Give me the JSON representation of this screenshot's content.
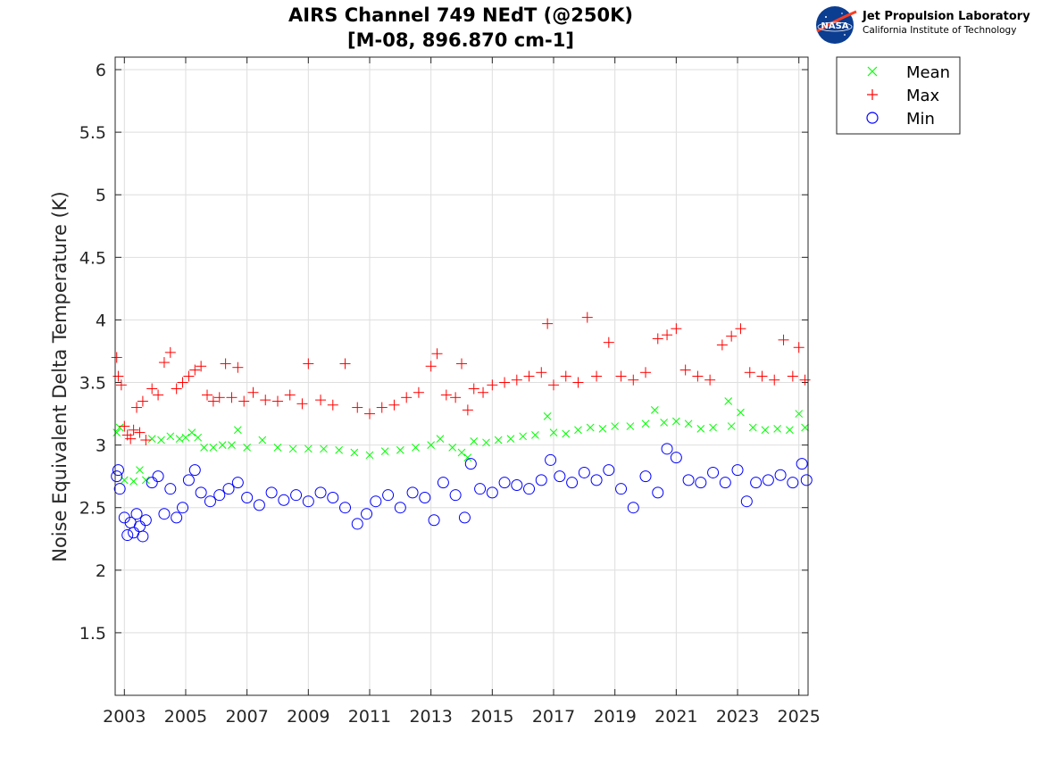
{
  "logo": {
    "org": "Jet Propulsion Laboratory",
    "sub": "California Institute of Technology",
    "badge": "NASA"
  },
  "chart_data": {
    "type": "scatter",
    "title_line1": "AIRS Channel 749 NEdT (@250K)",
    "title_line2": "[M-08, 896.870 cm-1]",
    "xlabel": "",
    "ylabel": "Noise Equivalent Delta Temperature (K)",
    "xlim": [
      2002.7,
      2025.3
    ],
    "ylim": [
      1.0,
      6.1
    ],
    "xticks": [
      2003,
      2005,
      2007,
      2009,
      2011,
      2013,
      2015,
      2017,
      2019,
      2021,
      2023,
      2025
    ],
    "yticks": [
      1.5,
      2,
      2.5,
      3,
      3.5,
      4,
      4.5,
      5,
      5.5,
      6
    ],
    "ytick_labels": [
      "1.5",
      "2",
      "2.5",
      "3",
      "3.5",
      "4",
      "4.5",
      "5",
      "5.5",
      "6"
    ],
    "grid": true,
    "legend_position": "outside-top-right",
    "series": [
      {
        "name": "Mean",
        "marker": "x",
        "color": "#00ff00",
        "points": [
          [
            2002.75,
            3.1
          ],
          [
            2002.85,
            3.14
          ],
          [
            2003.0,
            2.72
          ],
          [
            2003.3,
            2.71
          ],
          [
            2003.5,
            2.8
          ],
          [
            2003.7,
            2.72
          ],
          [
            2003.9,
            3.05
          ],
          [
            2004.2,
            3.04
          ],
          [
            2004.5,
            3.07
          ],
          [
            2004.8,
            3.05
          ],
          [
            2005.0,
            3.06
          ],
          [
            2005.2,
            3.1
          ],
          [
            2005.4,
            3.06
          ],
          [
            2005.6,
            2.98
          ],
          [
            2005.9,
            2.98
          ],
          [
            2006.2,
            3.0
          ],
          [
            2006.5,
            3.0
          ],
          [
            2006.7,
            3.12
          ],
          [
            2007.0,
            2.98
          ],
          [
            2007.5,
            3.04
          ],
          [
            2008.0,
            2.98
          ],
          [
            2008.5,
            2.97
          ],
          [
            2009.0,
            2.97
          ],
          [
            2009.5,
            2.97
          ],
          [
            2010.0,
            2.96
          ],
          [
            2010.5,
            2.94
          ],
          [
            2011.0,
            2.92
          ],
          [
            2011.5,
            2.95
          ],
          [
            2012.0,
            2.96
          ],
          [
            2012.5,
            2.98
          ],
          [
            2013.0,
            3.0
          ],
          [
            2013.3,
            3.05
          ],
          [
            2013.7,
            2.98
          ],
          [
            2014.0,
            2.94
          ],
          [
            2014.2,
            2.9
          ],
          [
            2014.4,
            3.03
          ],
          [
            2014.8,
            3.02
          ],
          [
            2015.2,
            3.04
          ],
          [
            2015.6,
            3.05
          ],
          [
            2016.0,
            3.07
          ],
          [
            2016.4,
            3.08
          ],
          [
            2016.8,
            3.23
          ],
          [
            2017.0,
            3.1
          ],
          [
            2017.4,
            3.09
          ],
          [
            2017.8,
            3.12
          ],
          [
            2018.2,
            3.14
          ],
          [
            2018.6,
            3.13
          ],
          [
            2019.0,
            3.15
          ],
          [
            2019.5,
            3.15
          ],
          [
            2020.0,
            3.17
          ],
          [
            2020.3,
            3.28
          ],
          [
            2020.6,
            3.18
          ],
          [
            2021.0,
            3.19
          ],
          [
            2021.4,
            3.17
          ],
          [
            2021.8,
            3.13
          ],
          [
            2022.2,
            3.14
          ],
          [
            2022.7,
            3.35
          ],
          [
            2022.8,
            3.15
          ],
          [
            2023.1,
            3.26
          ],
          [
            2023.5,
            3.14
          ],
          [
            2023.9,
            3.12
          ],
          [
            2024.3,
            3.13
          ],
          [
            2024.7,
            3.12
          ],
          [
            2025.0,
            3.25
          ],
          [
            2025.2,
            3.14
          ]
        ]
      },
      {
        "name": "Max",
        "marker": "+",
        "color": "#ff0000",
        "points": [
          [
            2002.75,
            3.7
          ],
          [
            2002.8,
            3.55
          ],
          [
            2002.9,
            3.48
          ],
          [
            2003.0,
            3.15
          ],
          [
            2003.1,
            3.08
          ],
          [
            2003.2,
            3.05
          ],
          [
            2003.3,
            3.12
          ],
          [
            2003.4,
            3.3
          ],
          [
            2003.5,
            3.1
          ],
          [
            2003.6,
            3.35
          ],
          [
            2003.7,
            3.04
          ],
          [
            2003.9,
            3.45
          ],
          [
            2004.1,
            3.4
          ],
          [
            2004.3,
            3.66
          ],
          [
            2004.5,
            3.74
          ],
          [
            2004.7,
            3.45
          ],
          [
            2004.9,
            3.5
          ],
          [
            2005.1,
            3.55
          ],
          [
            2005.3,
            3.6
          ],
          [
            2005.5,
            3.63
          ],
          [
            2005.7,
            3.4
          ],
          [
            2005.9,
            3.35
          ],
          [
            2006.1,
            3.38
          ],
          [
            2006.3,
            3.65
          ],
          [
            2006.5,
            3.38
          ],
          [
            2006.7,
            3.62
          ],
          [
            2006.9,
            3.35
          ],
          [
            2007.2,
            3.42
          ],
          [
            2007.6,
            3.36
          ],
          [
            2008.0,
            3.35
          ],
          [
            2008.4,
            3.4
          ],
          [
            2008.8,
            3.33
          ],
          [
            2009.0,
            3.65
          ],
          [
            2009.4,
            3.36
          ],
          [
            2009.8,
            3.32
          ],
          [
            2010.2,
            3.65
          ],
          [
            2010.6,
            3.3
          ],
          [
            2011.0,
            3.25
          ],
          [
            2011.4,
            3.3
          ],
          [
            2011.8,
            3.32
          ],
          [
            2012.2,
            3.38
          ],
          [
            2012.6,
            3.42
          ],
          [
            2013.0,
            3.63
          ],
          [
            2013.2,
            3.73
          ],
          [
            2013.5,
            3.4
          ],
          [
            2013.8,
            3.38
          ],
          [
            2014.0,
            3.65
          ],
          [
            2014.2,
            3.28
          ],
          [
            2014.4,
            3.45
          ],
          [
            2014.7,
            3.42
          ],
          [
            2015.0,
            3.48
          ],
          [
            2015.4,
            3.5
          ],
          [
            2015.8,
            3.52
          ],
          [
            2016.2,
            3.55
          ],
          [
            2016.6,
            3.58
          ],
          [
            2016.8,
            3.97
          ],
          [
            2017.0,
            3.48
          ],
          [
            2017.4,
            3.55
          ],
          [
            2017.8,
            3.5
          ],
          [
            2018.1,
            4.02
          ],
          [
            2018.4,
            3.55
          ],
          [
            2018.8,
            3.82
          ],
          [
            2019.2,
            3.55
          ],
          [
            2019.6,
            3.52
          ],
          [
            2020.0,
            3.58
          ],
          [
            2020.4,
            3.85
          ],
          [
            2020.7,
            3.88
          ],
          [
            2021.0,
            3.93
          ],
          [
            2021.3,
            3.6
          ],
          [
            2021.7,
            3.55
          ],
          [
            2022.1,
            3.52
          ],
          [
            2022.5,
            3.8
          ],
          [
            2022.8,
            3.87
          ],
          [
            2023.1,
            3.93
          ],
          [
            2023.4,
            3.58
          ],
          [
            2023.8,
            3.55
          ],
          [
            2024.2,
            3.52
          ],
          [
            2024.5,
            3.84
          ],
          [
            2024.8,
            3.55
          ],
          [
            2025.0,
            3.78
          ],
          [
            2025.2,
            3.52
          ]
        ]
      },
      {
        "name": "Min",
        "marker": "o",
        "color": "#0000ff",
        "points": [
          [
            2002.75,
            2.75
          ],
          [
            2002.8,
            2.8
          ],
          [
            2002.85,
            2.65
          ],
          [
            2003.0,
            2.42
          ],
          [
            2003.1,
            2.28
          ],
          [
            2003.2,
            2.38
          ],
          [
            2003.3,
            2.3
          ],
          [
            2003.4,
            2.45
          ],
          [
            2003.5,
            2.35
          ],
          [
            2003.6,
            2.27
          ],
          [
            2003.7,
            2.4
          ],
          [
            2003.9,
            2.7
          ],
          [
            2004.1,
            2.75
          ],
          [
            2004.3,
            2.45
          ],
          [
            2004.5,
            2.65
          ],
          [
            2004.7,
            2.42
          ],
          [
            2004.9,
            2.5
          ],
          [
            2005.1,
            2.72
          ],
          [
            2005.3,
            2.8
          ],
          [
            2005.5,
            2.62
          ],
          [
            2005.8,
            2.55
          ],
          [
            2006.1,
            2.6
          ],
          [
            2006.4,
            2.65
          ],
          [
            2006.7,
            2.7
          ],
          [
            2007.0,
            2.58
          ],
          [
            2007.4,
            2.52
          ],
          [
            2007.8,
            2.62
          ],
          [
            2008.2,
            2.56
          ],
          [
            2008.6,
            2.6
          ],
          [
            2009.0,
            2.55
          ],
          [
            2009.4,
            2.62
          ],
          [
            2009.8,
            2.58
          ],
          [
            2010.2,
            2.5
          ],
          [
            2010.6,
            2.37
          ],
          [
            2010.9,
            2.45
          ],
          [
            2011.2,
            2.55
          ],
          [
            2011.6,
            2.6
          ],
          [
            2012.0,
            2.5
          ],
          [
            2012.4,
            2.62
          ],
          [
            2012.8,
            2.58
          ],
          [
            2013.1,
            2.4
          ],
          [
            2013.4,
            2.7
          ],
          [
            2013.8,
            2.6
          ],
          [
            2014.1,
            2.42
          ],
          [
            2014.3,
            2.85
          ],
          [
            2014.6,
            2.65
          ],
          [
            2015.0,
            2.62
          ],
          [
            2015.4,
            2.7
          ],
          [
            2015.8,
            2.68
          ],
          [
            2016.2,
            2.65
          ],
          [
            2016.6,
            2.72
          ],
          [
            2016.9,
            2.88
          ],
          [
            2017.2,
            2.75
          ],
          [
            2017.6,
            2.7
          ],
          [
            2018.0,
            2.78
          ],
          [
            2018.4,
            2.72
          ],
          [
            2018.8,
            2.8
          ],
          [
            2019.2,
            2.65
          ],
          [
            2019.6,
            2.5
          ],
          [
            2020.0,
            2.75
          ],
          [
            2020.4,
            2.62
          ],
          [
            2020.7,
            2.97
          ],
          [
            2021.0,
            2.9
          ],
          [
            2021.4,
            2.72
          ],
          [
            2021.8,
            2.7
          ],
          [
            2022.2,
            2.78
          ],
          [
            2022.6,
            2.7
          ],
          [
            2023.0,
            2.8
          ],
          [
            2023.3,
            2.55
          ],
          [
            2023.6,
            2.7
          ],
          [
            2024.0,
            2.72
          ],
          [
            2024.4,
            2.76
          ],
          [
            2024.8,
            2.7
          ],
          [
            2025.1,
            2.85
          ],
          [
            2025.25,
            2.72
          ]
        ]
      }
    ]
  }
}
